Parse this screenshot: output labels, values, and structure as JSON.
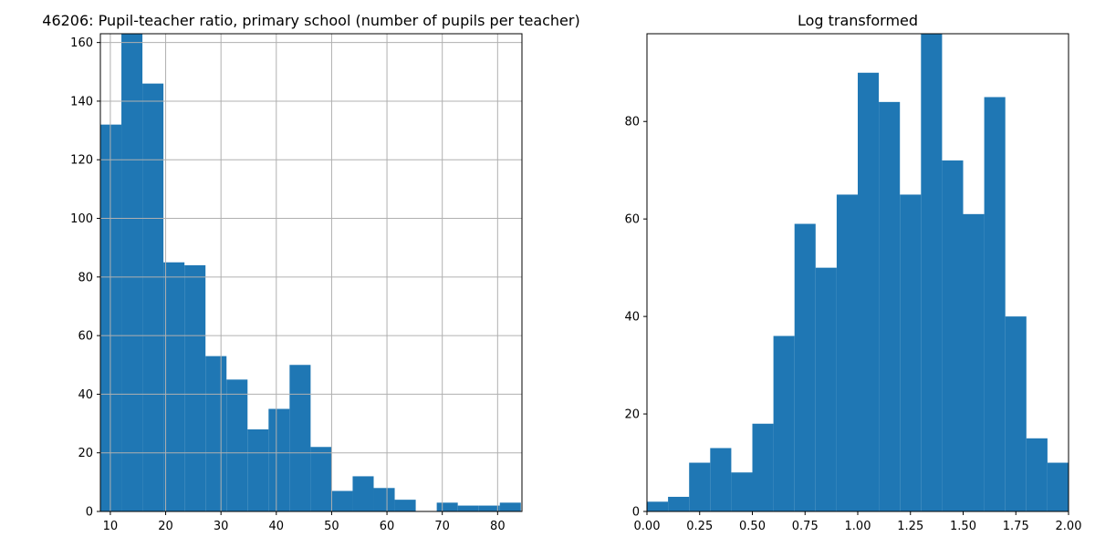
{
  "colors": {
    "bar": "#1f77b4",
    "grid": "#b0b0b0",
    "axis": "#000000",
    "background": "#ffffff"
  },
  "chart_data": [
    {
      "type": "bar",
      "title": "46206: Pupil-teacher ratio, primary school (number of pupils per teacher)",
      "xlabel": "",
      "ylabel": "",
      "grid": true,
      "xlim": [
        8.2,
        84.4
      ],
      "ylim": [
        0,
        163
      ],
      "bin_edges": [
        8.2,
        12.0,
        15.8,
        19.6,
        23.4,
        27.2,
        31.0,
        34.8,
        38.6,
        42.4,
        46.2,
        50.0,
        53.8,
        57.6,
        61.4,
        65.2,
        69.0,
        72.8,
        76.6,
        80.4,
        84.2
      ],
      "values": [
        132,
        170,
        146,
        85,
        84,
        53,
        45,
        28,
        35,
        50,
        22,
        7,
        12,
        8,
        4,
        0,
        3,
        2,
        2,
        3
      ],
      "xticks": [
        {
          "value": 10,
          "label": "10"
        },
        {
          "value": 20,
          "label": "20"
        },
        {
          "value": 30,
          "label": "30"
        },
        {
          "value": 40,
          "label": "40"
        },
        {
          "value": 50,
          "label": "50"
        },
        {
          "value": 60,
          "label": "60"
        },
        {
          "value": 70,
          "label": "70"
        },
        {
          "value": 80,
          "label": "80"
        }
      ],
      "yticks": [
        {
          "value": 0,
          "label": "0"
        },
        {
          "value": 20,
          "label": "20"
        },
        {
          "value": 40,
          "label": "40"
        },
        {
          "value": 60,
          "label": "60"
        },
        {
          "value": 80,
          "label": "80"
        },
        {
          "value": 100,
          "label": "100"
        },
        {
          "value": 120,
          "label": "120"
        },
        {
          "value": 140,
          "label": "140"
        },
        {
          "value": 160,
          "label": "160"
        }
      ]
    },
    {
      "type": "bar",
      "title": "Log transformed",
      "xlabel": "",
      "ylabel": "",
      "grid": false,
      "xlim": [
        0,
        2
      ],
      "ylim": [
        0,
        98
      ],
      "bin_edges": [
        0.0,
        0.1,
        0.2,
        0.3,
        0.4,
        0.5,
        0.6,
        0.7,
        0.8,
        0.9,
        1.0,
        1.1,
        1.2,
        1.3,
        1.4,
        1.5,
        1.6,
        1.7,
        1.8,
        1.9,
        2.0
      ],
      "values": [
        2,
        3,
        10,
        13,
        8,
        18,
        36,
        59,
        50,
        65,
        90,
        84,
        65,
        100,
        72,
        61,
        85,
        40,
        15,
        10
      ],
      "xticks": [
        {
          "value": 0.0,
          "label": "0.00"
        },
        {
          "value": 0.25,
          "label": "0.25"
        },
        {
          "value": 0.5,
          "label": "0.50"
        },
        {
          "value": 0.75,
          "label": "0.75"
        },
        {
          "value": 1.0,
          "label": "1.00"
        },
        {
          "value": 1.25,
          "label": "1.25"
        },
        {
          "value": 1.5,
          "label": "1.50"
        },
        {
          "value": 1.75,
          "label": "1.75"
        },
        {
          "value": 2.0,
          "label": "2.00"
        }
      ],
      "yticks": [
        {
          "value": 0,
          "label": "0"
        },
        {
          "value": 20,
          "label": "20"
        },
        {
          "value": 40,
          "label": "40"
        },
        {
          "value": 60,
          "label": "60"
        },
        {
          "value": 80,
          "label": "80"
        }
      ]
    }
  ]
}
